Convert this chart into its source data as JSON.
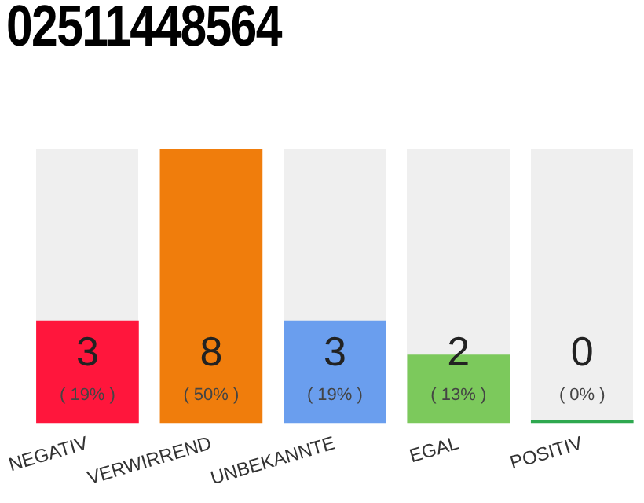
{
  "chart_data": {
    "type": "bar",
    "title": "02511448564",
    "categories": [
      "NEGATIV",
      "VERWIRREND",
      "UNBEKANNTE",
      "EGAL",
      "POSITIV"
    ],
    "values": [
      3,
      8,
      3,
      2,
      0
    ],
    "colors": [
      "#ff163c",
      "#f07d0c",
      "#6a9eee",
      "#7cc95c",
      "#2ea84f"
    ],
    "value_labels": [
      "3\n( 19% )",
      "8\n( 50% )",
      "3\n( 19% )",
      "2\n( 13% )",
      "0\n( 0% )"
    ],
    "ylim": [
      0,
      8
    ],
    "tick_labels": "x",
    "grid": false,
    "legend": false
  }
}
